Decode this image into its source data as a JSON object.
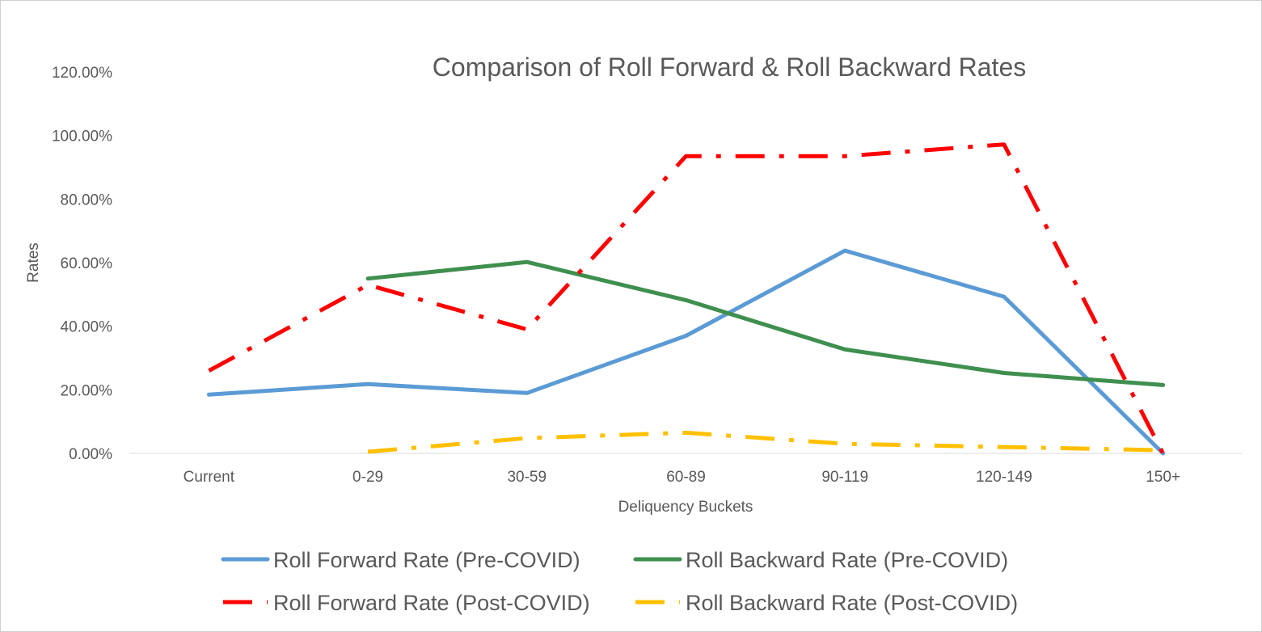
{
  "chart_data": {
    "type": "line",
    "title": "Comparison of Roll Forward & Roll Backward Rates",
    "xlabel": "Deliquency Buckets",
    "ylabel": "Rates",
    "categories": [
      "Current",
      "0-29",
      "30-59",
      "60-89",
      "90-119",
      "120-149",
      "150+"
    ],
    "ylim": [
      0,
      1.2
    ],
    "y_ticks": [
      0,
      0.2,
      0.4,
      0.6,
      0.8,
      1.0,
      1.2
    ],
    "y_tick_labels": [
      "0.00%",
      "20.00%",
      "40.00%",
      "60.00%",
      "80.00%",
      "100.00%",
      "120.00%"
    ],
    "grid": "horizontal-baseline",
    "legend_position": "bottom",
    "series": [
      {
        "name": "Roll Forward Rate (Pre-COVID)",
        "color": "#5b9bd5",
        "style": "solid",
        "values": [
          0.185,
          0.218,
          0.19,
          0.37,
          0.638,
          0.493,
          0.0
        ]
      },
      {
        "name": "Roll Backward Rate (Pre-COVID)",
        "color": "#3f8f4f",
        "style": "solid",
        "values": [
          null,
          0.55,
          0.602,
          0.482,
          0.327,
          0.253,
          0.215
        ]
      },
      {
        "name": "Roll Forward Rate (Post-COVID)",
        "color": "#ff0000",
        "style": "dash-dot",
        "values": [
          0.26,
          0.53,
          0.39,
          0.935,
          0.935,
          0.972,
          0.0
        ]
      },
      {
        "name": "Roll Backward Rate (Post-COVID)",
        "color": "#ffc000",
        "style": "dash-dot",
        "values": [
          null,
          0.005,
          0.048,
          0.065,
          0.03,
          0.02,
          0.01
        ]
      }
    ]
  }
}
